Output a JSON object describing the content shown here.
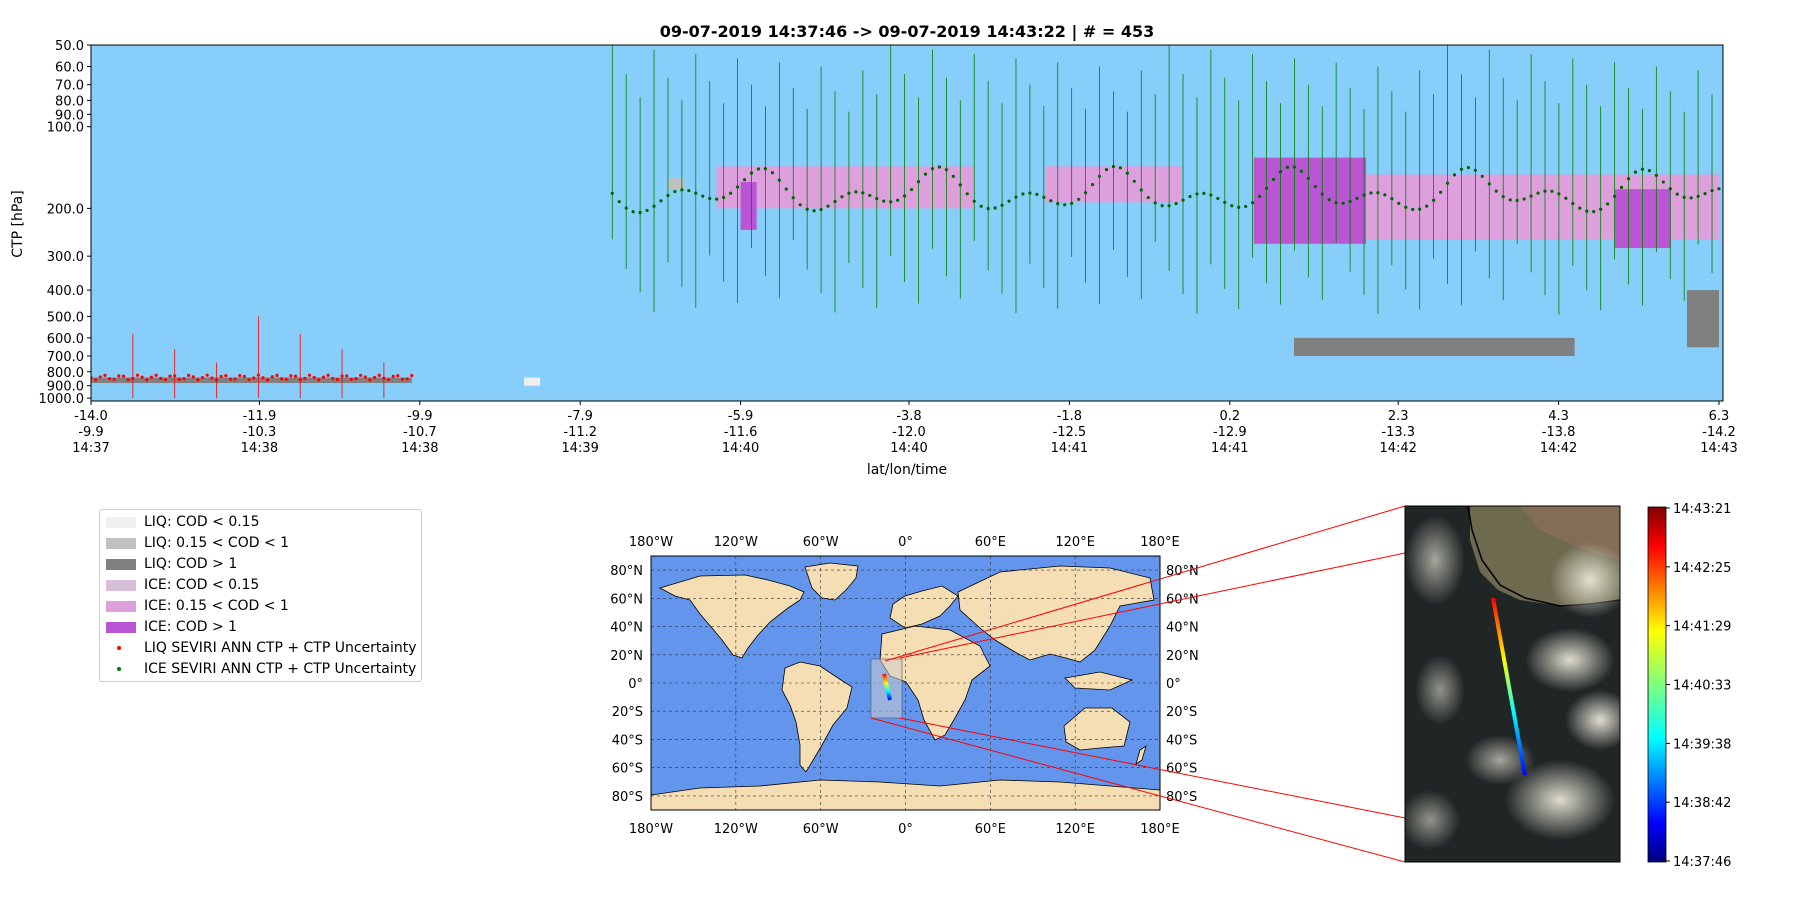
{
  "chart_data": [
    {
      "type": "bar",
      "title": "09-07-2019 14:37:46 -> 09-07-2019 14:43:22 | # = 453",
      "ylabel": "CTP [hPa]",
      "xlabel": "lat/lon/time",
      "y_scale": "log (inverted)",
      "ylim": [
        1000.0,
        50.0
      ],
      "y_ticks": [
        "50.0",
        "60.0",
        "70.0",
        "80.0",
        "90.0",
        "100.0",
        "200.0",
        "300.0",
        "400.0",
        "500.0",
        "600.0",
        "700.0",
        "800.0",
        "900.0",
        "1000.0"
      ],
      "x_ticks": [
        {
          "lat": "-14.0",
          "lon": "-9.9",
          "time": "14:37"
        },
        {
          "lat": "-11.9",
          "lon": "-10.3",
          "time": "14:38"
        },
        {
          "lat": "-9.9",
          "lon": "-10.7",
          "time": "14:38"
        },
        {
          "lat": "-7.9",
          "lon": "-11.2",
          "time": "14:39"
        },
        {
          "lat": "-5.9",
          "lon": "-11.6",
          "time": "14:40"
        },
        {
          "lat": "-3.8",
          "lon": "-12.0",
          "time": "14:40"
        },
        {
          "lat": "-1.8",
          "lon": "-12.5",
          "time": "14:41"
        },
        {
          "lat": "0.2",
          "lon": "-12.9",
          "time": "14:41"
        },
        {
          "lat": "2.3",
          "lon": "-13.3",
          "time": "14:42"
        },
        {
          "lat": "4.3",
          "lon": "-13.8",
          "time": "14:42"
        },
        {
          "lat": "6.3",
          "lon": "-14.2",
          "time": "14:43"
        }
      ],
      "background_color": "#87cefa",
      "cloud_layers": [
        {
          "class": "LIQ: COD > 1",
          "from_lat": -14.0,
          "to_lat": -10.0,
          "top_hpa": 840,
          "bottom_hpa": 880
        },
        {
          "class": "LIQ: COD < 0.15",
          "from_lat": -8.6,
          "to_lat": -8.4,
          "top_hpa": 840,
          "bottom_hpa": 900
        },
        {
          "class": "LIQ: 0.15 < COD < 1",
          "from_lat": -6.8,
          "to_lat": -6.6,
          "top_hpa": 155,
          "bottom_hpa": 170
        },
        {
          "class": "ICE: 0.15 < COD < 1",
          "from_lat": -6.2,
          "to_lat": -3.0,
          "top_hpa": 140,
          "bottom_hpa": 200
        },
        {
          "class": "ICE: COD > 1",
          "from_lat": -5.9,
          "to_lat": -5.7,
          "top_hpa": 160,
          "bottom_hpa": 240
        },
        {
          "class": "ICE: 0.15 < COD < 1",
          "from_lat": -2.1,
          "to_lat": -0.4,
          "top_hpa": 140,
          "bottom_hpa": 190
        },
        {
          "class": "ICE: COD > 1",
          "from_lat": 0.5,
          "to_lat": 1.9,
          "top_hpa": 130,
          "bottom_hpa": 270
        },
        {
          "class": "ICE: 0.15 < COD < 1",
          "from_lat": 1.9,
          "to_lat": 6.3,
          "top_hpa": 150,
          "bottom_hpa": 260
        },
        {
          "class": "ICE: COD > 1",
          "from_lat": 5.0,
          "to_lat": 5.7,
          "top_hpa": 170,
          "bottom_hpa": 280
        },
        {
          "class": "LIQ: COD > 1",
          "from_lat": 1.0,
          "to_lat": 4.5,
          "top_hpa": 600,
          "bottom_hpa": 700
        },
        {
          "class": "LIQ: COD > 1",
          "from_lat": 5.9,
          "to_lat": 6.3,
          "top_hpa": 400,
          "bottom_hpa": 650
        }
      ],
      "liq_ctp": {
        "from_lat": -14.0,
        "to_lat": -10.0,
        "ctp_hpa": 840,
        "uncertainty_range_hpa": [
          500,
          1000
        ]
      },
      "ice_ctp": {
        "from_lat": -7.5,
        "to_lat": 6.3,
        "ctp_hpa_range": [
          140,
          260
        ],
        "uncertainty_range_hpa": [
          50,
          500
        ]
      }
    },
    {
      "type": "map",
      "projection": "PlateCarree",
      "lon_ticks": [
        "180°W",
        "120°W",
        "60°W",
        "0°",
        "60°E",
        "120°E",
        "180°E"
      ],
      "lat_ticks": [
        "80°N",
        "60°N",
        "40°N",
        "20°N",
        "0°",
        "20°S",
        "40°S",
        "60°S",
        "80°S"
      ],
      "ocean_color": "#6495ed",
      "land_color": "#f5deb3",
      "inset_region": {
        "lon_min": -24,
        "lon_max": -2,
        "lat_min": -24,
        "lat_max": 17
      },
      "track": {
        "start": {
          "lat": -14.0,
          "lon": -9.9
        },
        "end": {
          "lat": 6.3,
          "lon": -14.2
        }
      }
    },
    {
      "type": "heatmap",
      "colorbar": {
        "colormap": "jet",
        "tick_labels": [
          "14:43:21",
          "14:42:25",
          "14:41:29",
          "14:40:33",
          "14:39:38",
          "14:38:42",
          "14:37:46"
        ]
      }
    }
  ],
  "legend": {
    "entries": [
      {
        "label": "LIQ: COD < 0.15",
        "kind": "patch",
        "color": "#f0f0f0"
      },
      {
        "label": "LIQ: 0.15 < COD < 1",
        "kind": "patch",
        "color": "#c0c0c0"
      },
      {
        "label": "LIQ: COD > 1",
        "kind": "patch",
        "color": "#808080"
      },
      {
        "label": "ICE: COD < 0.15",
        "kind": "patch",
        "color": "#d8bfd8"
      },
      {
        "label": "ICE: 0.15 < COD < 1",
        "kind": "patch",
        "color": "#dda0dd"
      },
      {
        "label": "ICE: COD > 1",
        "kind": "patch",
        "color": "#ba55d3"
      },
      {
        "label": "LIQ SEVIRI ANN CTP + CTP Uncertainty",
        "kind": "point",
        "color": "#ff0000"
      },
      {
        "label": "ICE SEVIRI ANN CTP + CTP Uncertainty",
        "kind": "point",
        "color": "#008000"
      }
    ]
  }
}
